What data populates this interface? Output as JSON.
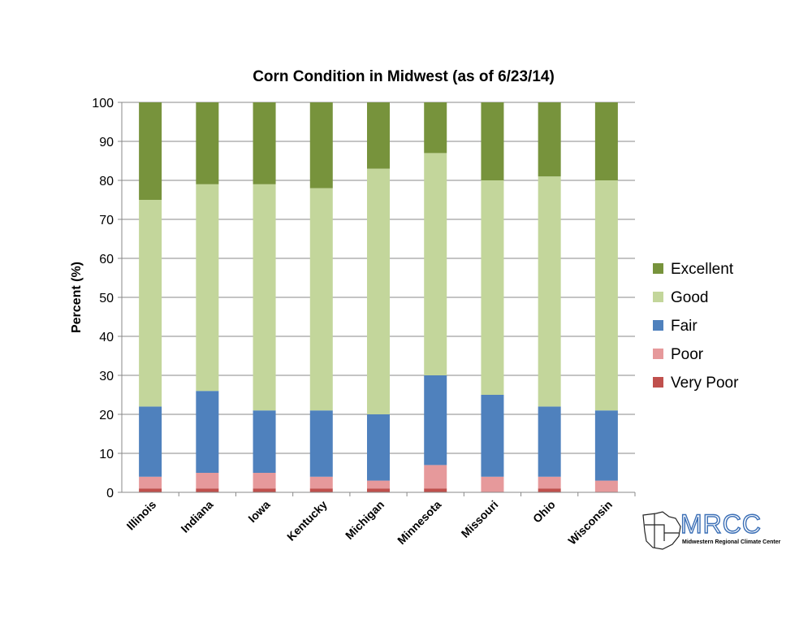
{
  "chart_data": {
    "type": "bar",
    "stacked": true,
    "title": "Corn Condition in Midwest (as of 6/23/14)",
    "xlabel": "",
    "ylabel": "Percent (%)",
    "ylim": [
      0,
      100
    ],
    "yticks": [
      0,
      10,
      20,
      30,
      40,
      50,
      60,
      70,
      80,
      90,
      100
    ],
    "grid": true,
    "legend_position": "right",
    "categories": [
      "Illinois",
      "Indiana",
      "Iowa",
      "Kentucky",
      "Michigan",
      "Minnesota",
      "Missouri",
      "Ohio",
      "Wisconsin"
    ],
    "series": [
      {
        "name": "Very Poor",
        "color": "#c0504d",
        "values": [
          1,
          1,
          1,
          1,
          1,
          1,
          0,
          1,
          0
        ]
      },
      {
        "name": "Poor",
        "color": "#e6999b",
        "values": [
          3,
          4,
          4,
          3,
          2,
          6,
          4,
          3,
          3
        ]
      },
      {
        "name": "Fair",
        "color": "#4f81bd",
        "values": [
          18,
          21,
          16,
          17,
          17,
          23,
          21,
          18,
          18
        ]
      },
      {
        "name": "Good",
        "color": "#c3d69b",
        "values": [
          53,
          53,
          58,
          57,
          63,
          57,
          55,
          59,
          59
        ]
      },
      {
        "name": "Excellent",
        "color": "#77933c",
        "values": [
          25,
          21,
          21,
          22,
          17,
          13,
          20,
          19,
          20
        ]
      }
    ]
  },
  "logo": {
    "text": "MRCC",
    "subtitle": "Midwestern Regional Climate Center",
    "color": "#3b6fb6"
  }
}
